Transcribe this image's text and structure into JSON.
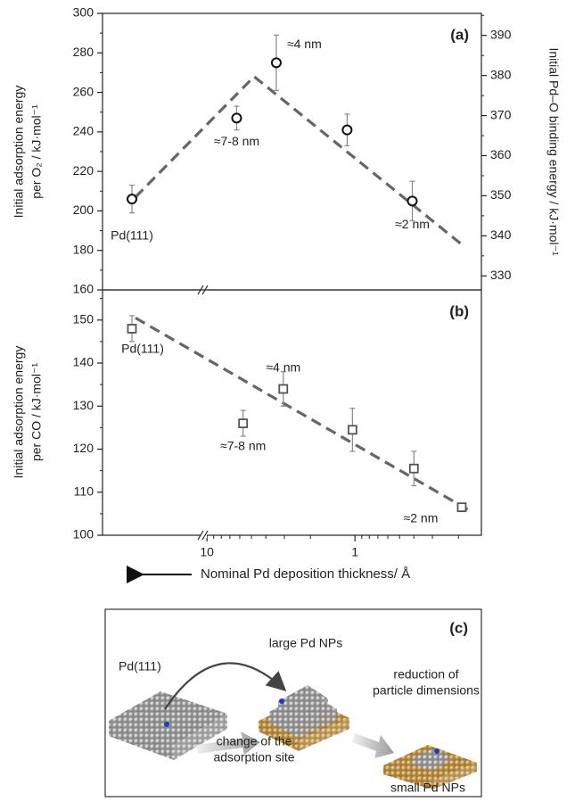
{
  "chart_data": [
    {
      "type": "scatter",
      "panel_label": "(a)",
      "y_label": [
        "Initial adsorption energy",
        "per O₂ / kJ·mol⁻¹"
      ],
      "y2_label": "Initial Pd–O binding energy / kJ·mol⁻¹",
      "xscale": "log",
      "xreversed": true,
      "xlim": [
        10.3,
        0.14
      ],
      "ylim": [
        160,
        300
      ],
      "yticks": [
        160,
        180,
        200,
        220,
        240,
        260,
        280,
        300
      ],
      "yminorticks": [
        170,
        190,
        210,
        230,
        250,
        270,
        290
      ],
      "y2lim": [
        326.5,
        395.5
      ],
      "y2ticks": [
        330,
        340,
        350,
        360,
        370,
        380,
        390
      ],
      "y2minorticks": [
        335,
        345,
        355,
        365,
        375,
        385,
        395
      ],
      "reference": {
        "label": "Pd(111)",
        "value": 206,
        "error": 7
      },
      "points": {
        "marker": "circle",
        "color": "#111111",
        "error_color": "#888888",
        "x": [
          6.3,
          3.4,
          1.13,
          0.41
        ],
        "values": [
          247,
          275,
          241,
          205
        ],
        "errors": [
          6,
          14,
          8,
          10
        ],
        "labels": [
          "≈7-8 nm",
          "≈4 nm",
          null,
          "≈2 nm"
        ]
      },
      "fit": {
        "color": "#666666",
        "reference_value": 207,
        "x": [
          4.8,
          0.19
        ],
        "values": [
          268,
          183
        ]
      }
    },
    {
      "type": "scatter",
      "panel_label": "(b)",
      "y_label": [
        "Initial adsorption energy",
        "per CO / kJ·mol⁻¹"
      ],
      "x_label": "Nominal Pd deposition thickness/ Å",
      "xscale": "log",
      "xreversed": true,
      "xlim": [
        10.3,
        0.14
      ],
      "xticks": [
        10,
        1
      ],
      "xminorticks": [
        9,
        8,
        7,
        6,
        5,
        4,
        3,
        2,
        0.9,
        0.8,
        0.7,
        0.6,
        0.5,
        0.4,
        0.3,
        0.2
      ],
      "ylim": [
        100,
        157
      ],
      "yticks": [
        100,
        110,
        120,
        130,
        140,
        150
      ],
      "yminorticks": [
        105,
        115,
        125,
        135,
        145,
        155
      ],
      "reference": {
        "label": "Pd(111)",
        "value": 148,
        "error": 3
      },
      "points": {
        "marker": "square",
        "color": "#555555",
        "error_color": "#888888",
        "x": [
          5.7,
          3.05,
          1.04,
          0.4,
          0.19
        ],
        "values": [
          126,
          134,
          124.5,
          115.5,
          106.5
        ],
        "errors": [
          3,
          4,
          5,
          4,
          0.5
        ],
        "labels": [
          "≈7-8 nm",
          "≈4 nm",
          null,
          null,
          "≈2 nm"
        ]
      },
      "fit": {
        "color": "#666666",
        "reference_value": 150.5,
        "x": [
          0.164
        ],
        "values": [
          105.5
        ]
      }
    }
  ],
  "diagram": {
    "panel_label": "(c)",
    "start_label": "Pd(111)",
    "large_label": "large Pd NPs",
    "reduction_label": [
      "reduction of",
      "particle dimensions"
    ],
    "site_label": [
      "change of the",
      "adsorption site"
    ],
    "small_label": "small Pd NPs"
  }
}
